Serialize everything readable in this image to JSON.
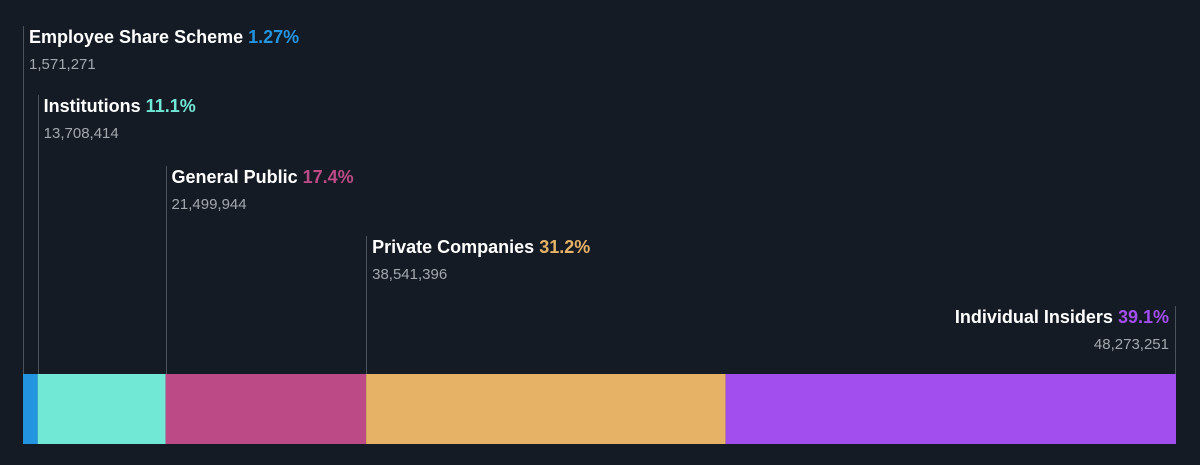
{
  "chart_data": {
    "type": "bar",
    "categories": [
      "Employee Share Scheme",
      "Institutions",
      "General Public",
      "Private Companies",
      "Individual Insiders"
    ],
    "percent_labels": [
      "1.27%",
      "11.1%",
      "17.4%",
      "31.2%",
      "39.1%"
    ],
    "count_labels": [
      "1,571,271",
      "13,708,414",
      "21,499,944",
      "38,541,396",
      "48,273,251"
    ],
    "values": [
      1571271,
      13708414,
      21499944,
      38541396,
      48273251
    ],
    "colors": [
      "#2394df",
      "#71e7d6",
      "#bb4a86",
      "#e5b266",
      "#a24ded"
    ],
    "title": "",
    "xlabel": "",
    "ylabel": "",
    "grid": false
  }
}
